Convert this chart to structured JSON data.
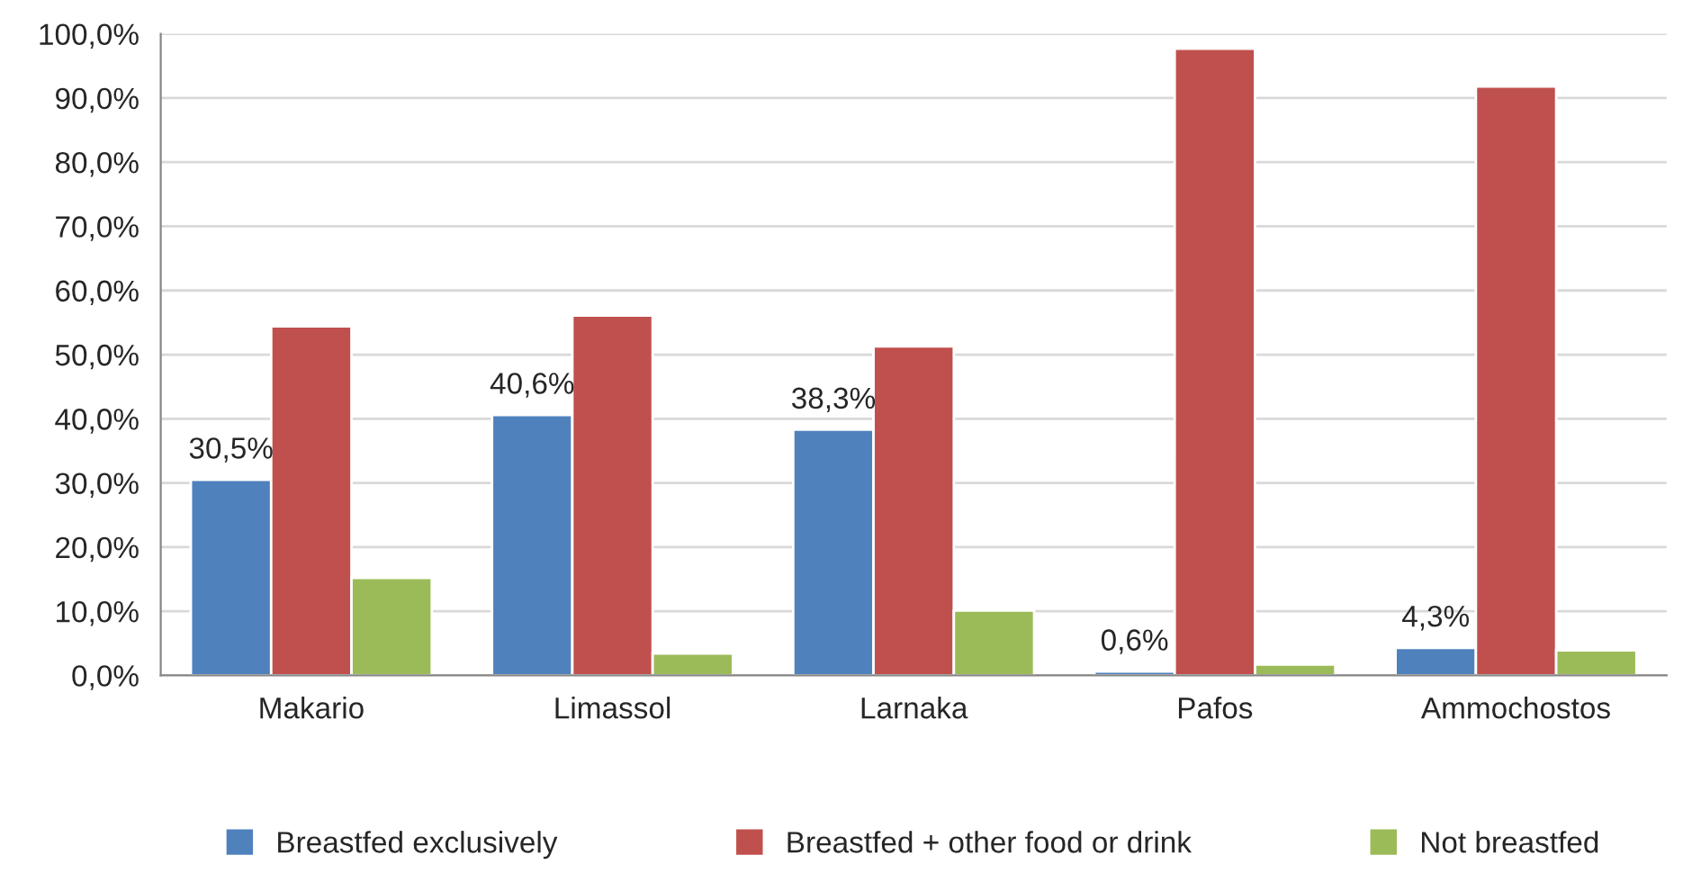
{
  "chart_data": {
    "type": "bar",
    "categories": [
      "Makario",
      "Limassol",
      "Larnaka",
      "Pafos",
      "Ammochostos"
    ],
    "series": [
      {
        "name": "Breastfed exclusively",
        "color": "#4f81bd",
        "values": [
          30.5,
          40.6,
          38.3,
          0.6,
          4.3
        ],
        "value_labels": [
          "30,5%",
          "40,6%",
          "38,3%",
          "0,6%",
          "4,3%"
        ]
      },
      {
        "name": "Breastfed + other food or drink",
        "color": "#c0504d",
        "values": [
          54.4,
          56.1,
          51.3,
          97.7,
          91.8
        ]
      },
      {
        "name": "Not breastfed",
        "color": "#9bbb59",
        "values": [
          15.2,
          3.4,
          10.1,
          1.7,
          3.9
        ]
      }
    ],
    "ylim": [
      0,
      100
    ],
    "yticks": [
      {
        "value": 0,
        "label": "0,0%"
      },
      {
        "value": 10,
        "label": "10,0%"
      },
      {
        "value": 20,
        "label": "20,0%"
      },
      {
        "value": 30,
        "label": "30,0%"
      },
      {
        "value": 40,
        "label": "40,0%"
      },
      {
        "value": 50,
        "label": "50,0%"
      },
      {
        "value": 60,
        "label": "60,0%"
      },
      {
        "value": 70,
        "label": "70,0%"
      },
      {
        "value": 80,
        "label": "80,0%"
      },
      {
        "value": 90,
        "label": "90,0%"
      },
      {
        "value": 100,
        "label": "100,0%"
      }
    ],
    "grid": "y",
    "legend": "bottom"
  }
}
